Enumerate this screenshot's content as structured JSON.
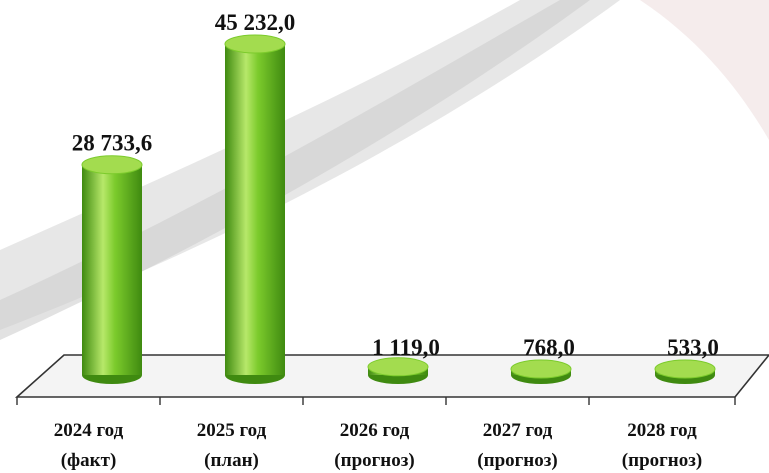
{
  "chart_data": {
    "type": "bar",
    "style": "3d-cylinder",
    "categories": [
      [
        "2024 год",
        "(факт)"
      ],
      [
        "2025 год",
        "(план)"
      ],
      [
        "2026 год",
        "(прогноз)"
      ],
      [
        "2027 год",
        "(прогноз)"
      ],
      [
        "2028 год",
        "(прогноз)"
      ]
    ],
    "values": [
      28733.6,
      45232.0,
      1119.0,
      768.0,
      533.0
    ],
    "data_labels": [
      "28 733,6",
      "45 232,0",
      "1 119,0",
      "768,0",
      "533,0"
    ],
    "title": "",
    "xlabel": "",
    "ylabel": "",
    "ylim": [
      0,
      48000
    ],
    "grid": false,
    "legend": "none",
    "colors": {
      "bar_light": "#b7e86a",
      "bar_mid": "#7ccb2c",
      "bar_dark": "#3f8a10",
      "bar_top": "#a3dc4f",
      "floor_stroke": "#333333",
      "floor_fill": "#f4f4f4"
    }
  }
}
